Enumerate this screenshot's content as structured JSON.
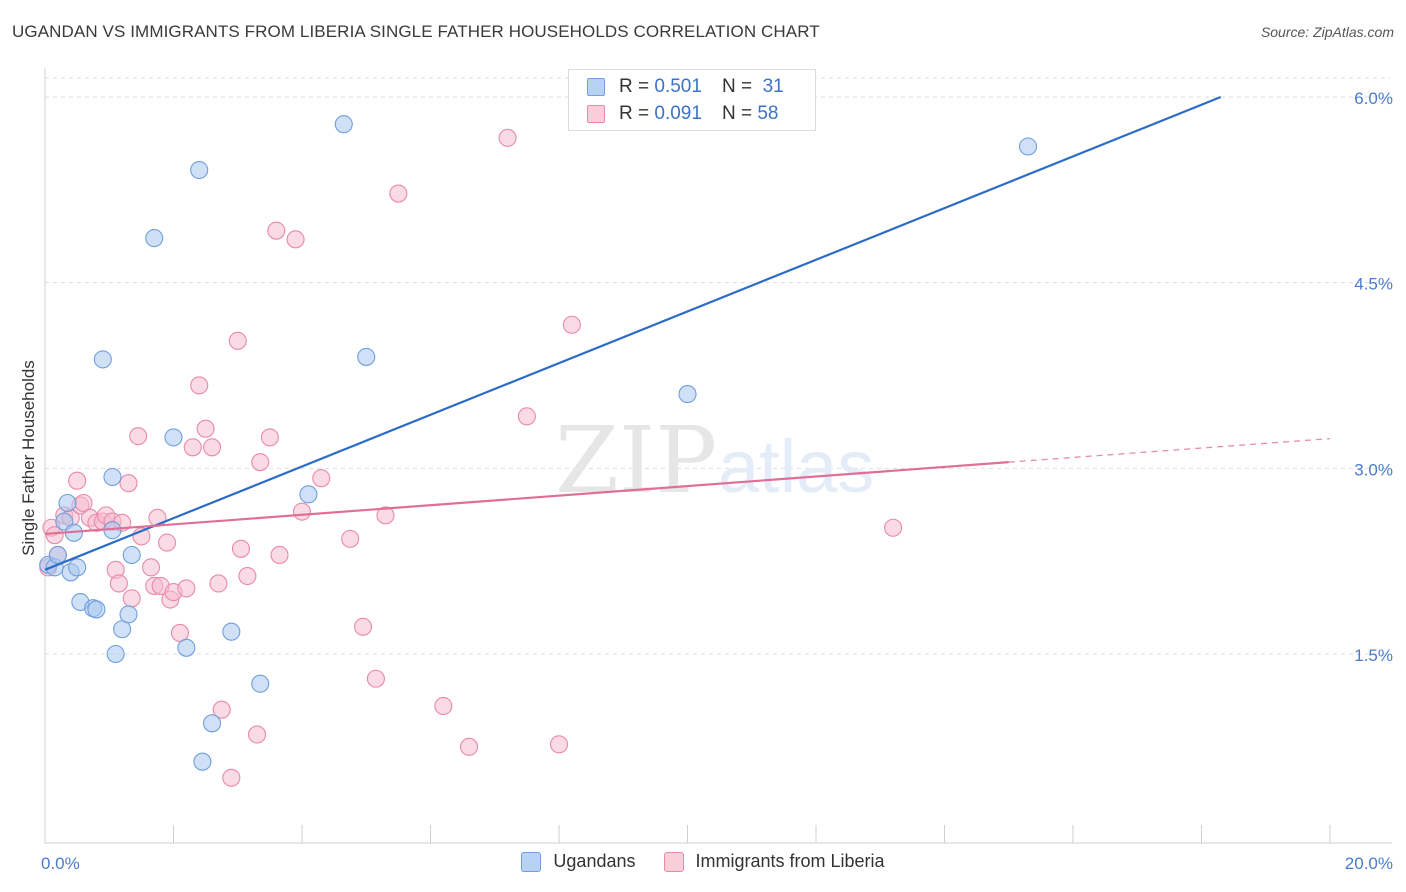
{
  "header": {
    "title": "UGANDAN VS IMMIGRANTS FROM LIBERIA SINGLE FATHER HOUSEHOLDS CORRELATION CHART",
    "source": "Source: ZipAtlas.com"
  },
  "legend": {
    "rows": [
      {
        "r_label": "R =",
        "r_value": "0.501",
        "n_label": "N =",
        "n_value": "31"
      },
      {
        "r_label": "R =",
        "r_value": "0.091",
        "n_label": "N =",
        "n_value": "58"
      }
    ]
  },
  "bottom_legend": [
    "Ugandans",
    "Immigrants from Liberia"
  ],
  "watermark": {
    "zip": "ZIP",
    "atlas": "atlas"
  },
  "colors": {
    "blue_fill": "#a9c8f0",
    "blue_stroke": "#6f9fdc",
    "blue_line": "#2b6cc8",
    "pink_fill": "#f6bccd",
    "pink_stroke": "#e88aa8",
    "pink_line": "#e06f98",
    "axis_label": "#4a7cc9",
    "grid": "#dddddd"
  },
  "chart_data": {
    "type": "scatter",
    "title": "UGANDAN VS IMMIGRANTS FROM LIBERIA SINGLE FATHER HOUSEHOLDS CORRELATION CHART",
    "xlabel": "",
    "ylabel": "Single Father Households",
    "xlim": [
      0,
      20
    ],
    "ylim": [
      0,
      6.2
    ],
    "x_tick_labels": [
      {
        "value": 0,
        "label": "0.0%"
      },
      {
        "value": 20,
        "label": "20.0%"
      }
    ],
    "y_tick_labels": [
      {
        "value": 1.5,
        "label": "1.5%"
      },
      {
        "value": 3.0,
        "label": "3.0%"
      },
      {
        "value": 4.5,
        "label": "4.5%"
      },
      {
        "value": 6.0,
        "label": "6.0%"
      }
    ],
    "series": [
      {
        "name": "Ugandans",
        "r": 0.501,
        "n": 31,
        "points": [
          [
            0.05,
            2.22
          ],
          [
            0.15,
            2.2
          ],
          [
            0.2,
            2.3
          ],
          [
            0.3,
            2.57
          ],
          [
            0.35,
            2.72
          ],
          [
            0.4,
            2.16
          ],
          [
            0.45,
            2.48
          ],
          [
            0.5,
            2.2
          ],
          [
            0.55,
            1.92
          ],
          [
            0.75,
            1.87
          ],
          [
            0.8,
            1.86
          ],
          [
            0.9,
            3.88
          ],
          [
            1.05,
            2.93
          ],
          [
            1.05,
            2.5
          ],
          [
            1.1,
            1.5
          ],
          [
            1.2,
            1.7
          ],
          [
            1.3,
            1.82
          ],
          [
            1.35,
            2.3
          ],
          [
            1.7,
            4.86
          ],
          [
            2.0,
            3.25
          ],
          [
            2.2,
            1.55
          ],
          [
            2.4,
            5.41
          ],
          [
            2.45,
            0.63
          ],
          [
            2.6,
            0.94
          ],
          [
            2.9,
            1.68
          ],
          [
            3.35,
            1.26
          ],
          [
            4.1,
            2.79
          ],
          [
            4.65,
            5.78
          ],
          [
            5.0,
            3.9
          ],
          [
            10.0,
            3.6
          ],
          [
            15.3,
            5.6
          ]
        ],
        "trend": {
          "x0": 0,
          "y0": 2.18,
          "x1": 18.3,
          "y1": 6.0,
          "dashed_to": null
        }
      },
      {
        "name": "Immigrants from Liberia",
        "r": 0.091,
        "n": 58,
        "points": [
          [
            0.05,
            2.2
          ],
          [
            0.1,
            2.52
          ],
          [
            0.15,
            2.46
          ],
          [
            0.2,
            2.3
          ],
          [
            0.3,
            2.62
          ],
          [
            0.4,
            2.6
          ],
          [
            0.5,
            2.9
          ],
          [
            0.55,
            2.7
          ],
          [
            0.6,
            2.72
          ],
          [
            0.7,
            2.6
          ],
          [
            0.8,
            2.56
          ],
          [
            0.9,
            2.57
          ],
          [
            0.95,
            2.62
          ],
          [
            1.05,
            2.57
          ],
          [
            1.1,
            2.18
          ],
          [
            1.15,
            2.07
          ],
          [
            1.2,
            2.56
          ],
          [
            1.3,
            2.88
          ],
          [
            1.35,
            1.95
          ],
          [
            1.45,
            3.26
          ],
          [
            1.5,
            2.45
          ],
          [
            1.65,
            2.2
          ],
          [
            1.7,
            2.05
          ],
          [
            1.75,
            2.6
          ],
          [
            1.8,
            2.05
          ],
          [
            1.9,
            2.4
          ],
          [
            1.95,
            1.94
          ],
          [
            2.0,
            2.0
          ],
          [
            2.1,
            1.67
          ],
          [
            2.2,
            2.03
          ],
          [
            2.3,
            3.17
          ],
          [
            2.4,
            3.67
          ],
          [
            2.5,
            3.32
          ],
          [
            2.6,
            3.17
          ],
          [
            2.7,
            2.07
          ],
          [
            2.75,
            1.05
          ],
          [
            2.9,
            0.5
          ],
          [
            3.0,
            4.03
          ],
          [
            3.05,
            2.35
          ],
          [
            3.15,
            2.13
          ],
          [
            3.3,
            0.85
          ],
          [
            3.35,
            3.05
          ],
          [
            3.5,
            3.25
          ],
          [
            3.6,
            4.92
          ],
          [
            3.65,
            2.3
          ],
          [
            3.9,
            4.85
          ],
          [
            4.0,
            2.65
          ],
          [
            4.3,
            2.92
          ],
          [
            4.75,
            2.43
          ],
          [
            4.95,
            1.72
          ],
          [
            5.15,
            1.3
          ],
          [
            5.3,
            2.62
          ],
          [
            5.5,
            5.22
          ],
          [
            6.2,
            1.08
          ],
          [
            6.6,
            0.75
          ],
          [
            7.2,
            5.67
          ],
          [
            7.5,
            3.42
          ],
          [
            8.0,
            0.77
          ],
          [
            8.2,
            4.16
          ],
          [
            13.2,
            2.52
          ]
        ],
        "trend": {
          "x0": 0,
          "y0": 2.47,
          "x1": 15.0,
          "y1": 3.05,
          "dashed_to": {
            "x": 20,
            "y": 3.24
          }
        }
      }
    ]
  }
}
